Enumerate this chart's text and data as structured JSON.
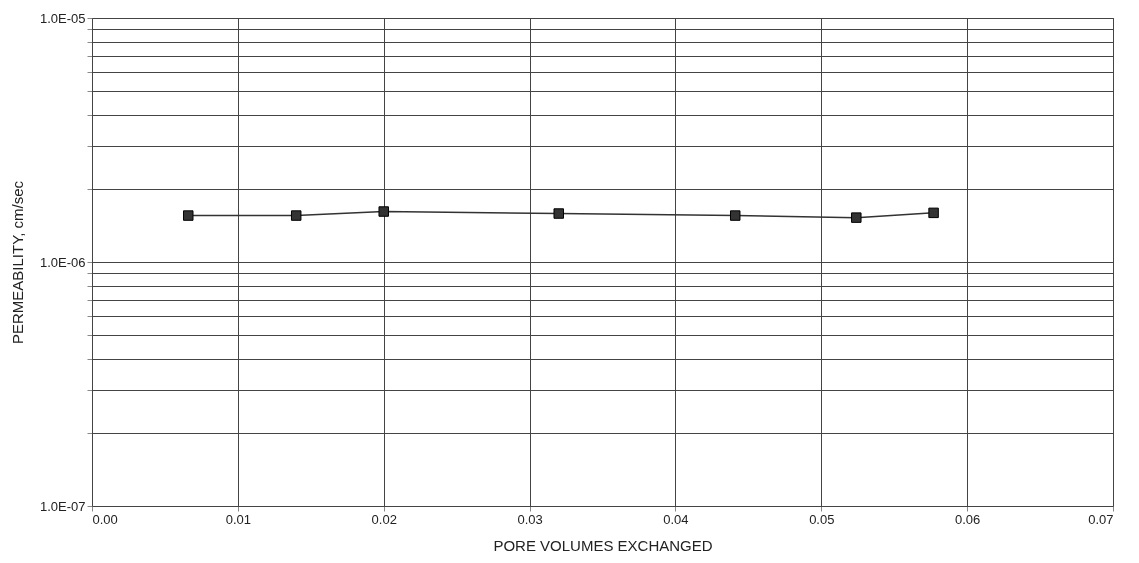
{
  "chart_data": {
    "type": "line",
    "xlabel": "PORE VOLUMES EXCHANGED",
    "ylabel": "PERMEABILITY, cm/sec",
    "x": [
      0.0066,
      0.014,
      0.02,
      0.032,
      0.0441,
      0.0524,
      0.0577
    ],
    "series": [
      {
        "color": "#333333",
        "values": [
          1.55e-06,
          1.55e-06,
          1.61e-06,
          1.58e-06,
          1.55e-06,
          1.52e-06,
          1.59e-06
        ]
      }
    ],
    "xlim": [
      0,
      0.07
    ],
    "xticks": [
      {
        "value": 0,
        "label": "0.00"
      },
      0.01,
      0.02,
      0.03,
      0.04,
      0.05,
      0.06,
      0.07
    ],
    "ylim": [
      1e-07,
      1e-05
    ],
    "log": true,
    "yticks": [
      {
        "value": 1e-07,
        "label": "1.0E-07"
      },
      {
        "value": 2e-07,
        "label": null
      },
      {
        "value": 3e-07,
        "label": null
      },
      {
        "value": 4e-07,
        "label": null
      },
      {
        "value": 5e-07,
        "label": null
      },
      {
        "value": 6e-07,
        "label": null
      },
      {
        "value": 7e-07,
        "label": null
      },
      {
        "value": 8e-07,
        "label": null
      },
      {
        "value": 9e-07,
        "label": null
      },
      {
        "value": 1e-06,
        "label": "1.0E-06"
      },
      {
        "value": 2e-06,
        "label": null
      },
      {
        "value": 3e-06,
        "label": null
      },
      {
        "value": 4e-06,
        "label": null
      },
      {
        "value": 5e-06,
        "label": null
      },
      {
        "value": 6e-06,
        "label": null
      },
      {
        "value": 7e-06,
        "label": null
      },
      {
        "value": 8e-06,
        "label": null
      },
      {
        "value": 9e-06,
        "label": null
      },
      {
        "value": 1e-05,
        "label": "1.0E-05"
      }
    ],
    "grid": true,
    "marker": "square",
    "line_style": "solid"
  }
}
